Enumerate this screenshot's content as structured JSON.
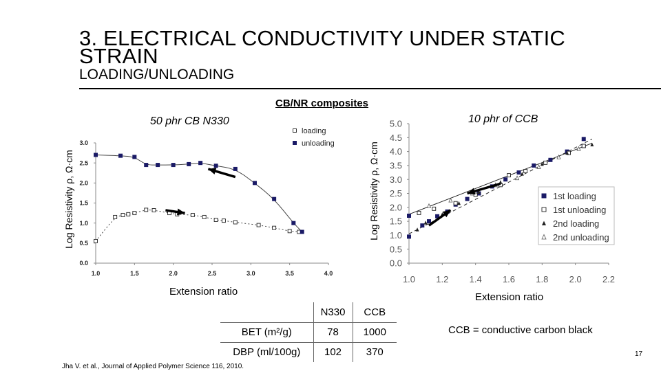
{
  "slide": {
    "title_line1": "3. ELECTRICAL CONDUCTIVITY UNDER STATIC",
    "title_line2": "STRAIN",
    "subtitle": "LOADING/UNLOADING",
    "section_label": "CB/NR composites",
    "note": "CCB = conductive carbon black",
    "reference": "Jha V. et al., Journal of Applied Polymer Science 116, 2010.",
    "page_number": "17"
  },
  "table": {
    "headers": [
      "",
      "N330",
      "CCB"
    ],
    "rows": [
      [
        "BET (m²/g)",
        "78",
        "1000"
      ],
      [
        "DBP (ml/100g)",
        "102",
        "370"
      ]
    ]
  },
  "chart_data": [
    {
      "type": "scatter",
      "title": "50 phr CB N330",
      "xlabel": "Extension ratio",
      "ylabel": "Log Resistivity ρ, Ω·cm",
      "xlim": [
        1.0,
        4.0
      ],
      "ylim": [
        0.0,
        3.0
      ],
      "xticks": [
        "1.0",
        "1.5",
        "2.0",
        "2.5",
        "3.0",
        "3.5",
        "4.0"
      ],
      "yticks": [
        "0.0",
        "0.5",
        "1.0",
        "1.5",
        "2.0",
        "2.5",
        "3.0"
      ],
      "legend_position": "top-right",
      "series": [
        {
          "name": "loading",
          "marker": "open-square",
          "points": [
            [
              1.0,
              0.55
            ],
            [
              1.25,
              1.15
            ],
            [
              1.35,
              1.2
            ],
            [
              1.42,
              1.22
            ],
            [
              1.5,
              1.25
            ],
            [
              1.65,
              1.33
            ],
            [
              1.75,
              1.32
            ],
            [
              1.95,
              1.25
            ],
            [
              2.05,
              1.22
            ],
            [
              2.25,
              1.2
            ],
            [
              2.4,
              1.15
            ],
            [
              2.55,
              1.08
            ],
            [
              2.65,
              1.06
            ],
            [
              2.8,
              1.02
            ],
            [
              3.1,
              0.95
            ],
            [
              3.3,
              0.88
            ],
            [
              3.5,
              0.8
            ],
            [
              3.62,
              0.78
            ]
          ]
        },
        {
          "name": "unloading",
          "marker": "filled-square",
          "points": [
            [
              1.0,
              2.7
            ],
            [
              1.32,
              2.68
            ],
            [
              1.5,
              2.65
            ],
            [
              1.65,
              2.45
            ],
            [
              1.8,
              2.45
            ],
            [
              2.0,
              2.45
            ],
            [
              2.2,
              2.47
            ],
            [
              2.35,
              2.5
            ],
            [
              2.55,
              2.43
            ],
            [
              2.8,
              2.35
            ],
            [
              3.05,
              2.0
            ],
            [
              3.3,
              1.6
            ],
            [
              3.55,
              1.0
            ],
            [
              3.66,
              0.78
            ]
          ]
        }
      ],
      "arrows": [
        {
          "from": [
            2.8,
            2.15
          ],
          "to": [
            2.45,
            2.35
          ],
          "meaning": "unloading direction"
        },
        {
          "from": [
            1.9,
            1.32
          ],
          "to": [
            2.15,
            1.25
          ],
          "meaning": "loading direction"
        }
      ]
    },
    {
      "type": "scatter",
      "title": "10 phr of CCB",
      "xlabel": "Extension ratio",
      "ylabel": "Log Resistivity ρ, Ω·cm",
      "xlim": [
        1.0,
        2.2
      ],
      "ylim": [
        0.0,
        5.0
      ],
      "xticks": [
        "1.0",
        "1.2",
        "1.4",
        "1.6",
        "1.8",
        "2.0",
        "2.2"
      ],
      "yticks": [
        "0.0",
        "0.5",
        "1.0",
        "1.5",
        "2.0",
        "2.5",
        "3.0",
        "3.5",
        "4.0",
        "4.5",
        "5.0"
      ],
      "legend_position": "bottom-right",
      "series": [
        {
          "name": "1st loading",
          "marker": "filled-square",
          "points": [
            [
              1.0,
              0.95
            ],
            [
              1.0,
              1.7
            ],
            [
              1.08,
              1.35
            ],
            [
              1.12,
              1.5
            ],
            [
              1.17,
              1.68
            ],
            [
              1.23,
              1.85
            ],
            [
              1.28,
              2.1
            ],
            [
              1.35,
              2.3
            ],
            [
              1.42,
              2.5
            ],
            [
              1.5,
              2.75
            ],
            [
              1.58,
              3.0
            ],
            [
              1.66,
              3.25
            ],
            [
              1.75,
              3.5
            ],
            [
              1.85,
              3.7
            ],
            [
              1.95,
              4.0
            ],
            [
              2.05,
              4.2
            ],
            [
              2.05,
              4.45
            ]
          ]
        },
        {
          "name": "1st unloading",
          "marker": "open-square",
          "points": [
            [
              1.06,
              1.8
            ],
            [
              1.15,
              1.95
            ],
            [
              1.28,
              2.15
            ],
            [
              1.4,
              2.45
            ],
            [
              1.55,
              2.8
            ],
            [
              1.6,
              3.15
            ],
            [
              1.7,
              3.3
            ],
            [
              1.82,
              3.6
            ],
            [
              1.96,
              3.95
            ],
            [
              2.05,
              4.2
            ]
          ]
        },
        {
          "name": "2nd loading",
          "marker": "filled-triangle",
          "points": [
            [
              1.05,
              1.2
            ],
            [
              1.1,
              1.45
            ],
            [
              1.2,
              1.75
            ],
            [
              1.3,
              2.15
            ],
            [
              1.42,
              2.55
            ],
            [
              1.55,
              2.9
            ],
            [
              1.68,
              3.2
            ],
            [
              1.8,
              3.55
            ],
            [
              1.95,
              3.95
            ],
            [
              2.1,
              4.25
            ]
          ]
        },
        {
          "name": "2nd unloading",
          "marker": "open-triangle",
          "points": [
            [
              1.12,
              2.05
            ],
            [
              1.25,
              2.25
            ],
            [
              1.38,
              2.5
            ],
            [
              1.52,
              2.8
            ],
            [
              1.65,
              3.05
            ],
            [
              1.78,
              3.45
            ],
            [
              1.9,
              3.8
            ],
            [
              2.02,
              4.1
            ]
          ]
        }
      ],
      "fit_lines": [
        {
          "style": "solid",
          "from": [
            1.0,
            1.75
          ],
          "to": [
            2.1,
            4.3
          ]
        },
        {
          "style": "dashed",
          "from": [
            1.0,
            1.05
          ],
          "to": [
            2.1,
            4.45
          ]
        }
      ],
      "arrows": [
        {
          "from": [
            1.12,
            1.35
          ],
          "to": [
            1.25,
            1.9
          ],
          "meaning": "loading direction"
        },
        {
          "from": [
            1.55,
            2.85
          ],
          "to": [
            1.35,
            2.5
          ],
          "meaning": "unloading direction"
        }
      ]
    }
  ]
}
